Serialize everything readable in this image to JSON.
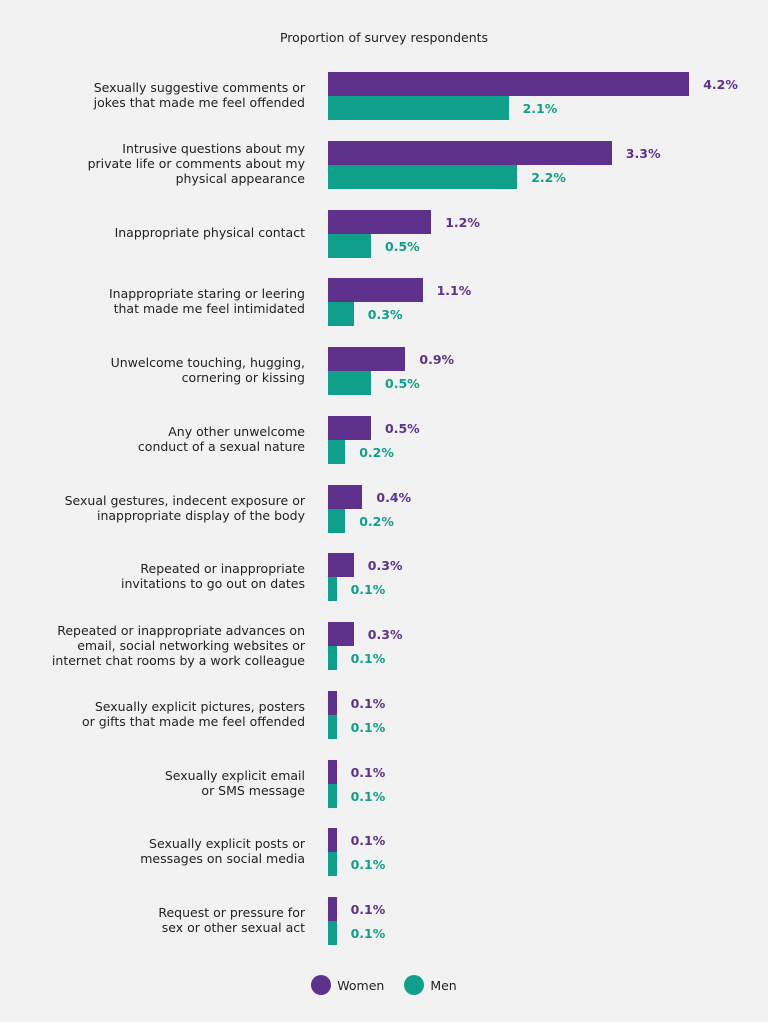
{
  "chart_data": {
    "type": "bar",
    "orientation": "horizontal",
    "title": "Proportion of survey respondents",
    "categories": [
      "Sexually suggestive comments or\njokes that made me feel offended",
      "Intrusive questions about my\nprivate life or comments about my\nphysical appearance",
      "Inappropriate physical contact",
      "Inappropriate staring or leering\nthat made me feel intimidated",
      "Unwelcome touching, hugging,\ncornering or kissing",
      "Any other unwelcome\nconduct of a sexual nature",
      "Sexual gestures, indecent exposure or\ninappropriate display of the body",
      "Repeated or inappropriate\ninvitations to go out on dates",
      "Repeated or inappropriate advances on\nemail, social networking websites or\ninternet chat rooms by a work colleague",
      "Sexually explicit pictures, posters\nor gifts that made me feel offended",
      "Sexually explicit email\nor SMS message",
      "Sexually explicit posts or\nmessages on social media",
      "Request or pressure for\nsex or other sexual act"
    ],
    "series": [
      {
        "name": "Women",
        "color": "#5e318c",
        "values": [
          4.2,
          3.3,
          1.2,
          1.1,
          0.9,
          0.5,
          0.4,
          0.3,
          0.3,
          0.1,
          0.1,
          0.1,
          0.1
        ]
      },
      {
        "name": "Men",
        "color": "#0ea08a",
        "values": [
          2.1,
          2.2,
          0.5,
          0.3,
          0.5,
          0.2,
          0.2,
          0.1,
          0.1,
          0.1,
          0.1,
          0.1,
          0.1
        ]
      }
    ],
    "value_suffix": "%",
    "grid": false,
    "legend": "bottom"
  }
}
